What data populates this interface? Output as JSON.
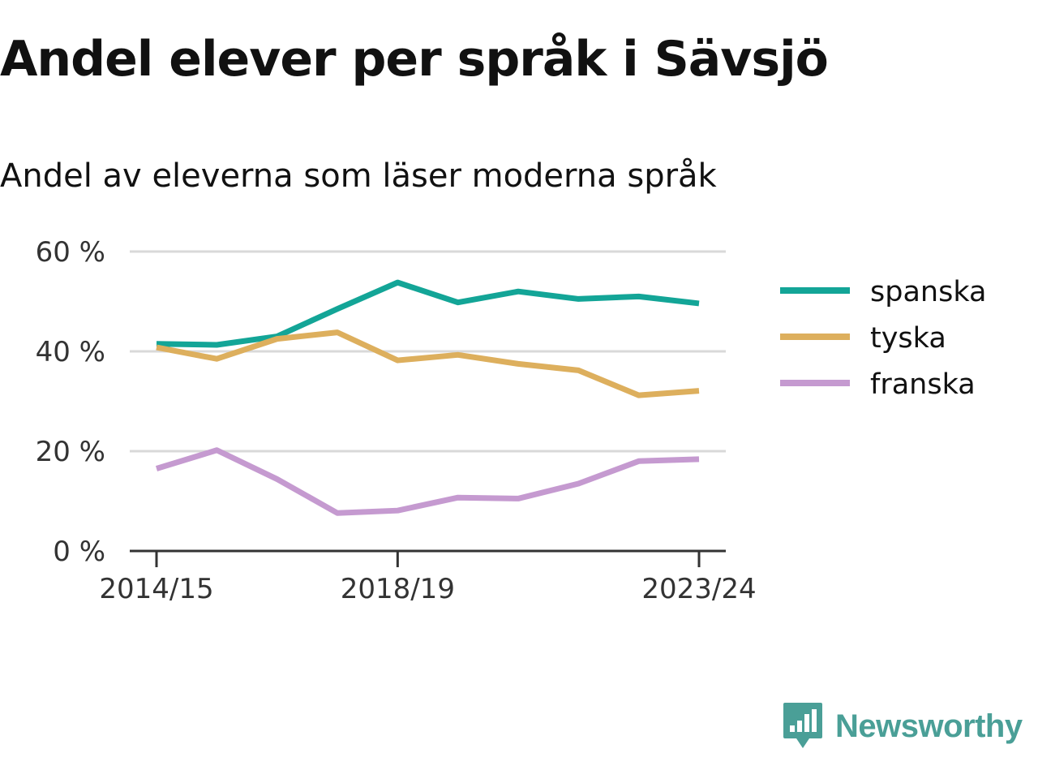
{
  "title": "Andel elever per språk i Sävsjö",
  "subtitle": "Andel av eleverna som läser moderna språk",
  "brand": {
    "name": "Newsworthy",
    "icon": "newsworthy-logo-icon",
    "color": "#4a9f97"
  },
  "chart_data": {
    "type": "line",
    "x": [
      "2014/15",
      "2015/16",
      "2016/17",
      "2017/18",
      "2018/19",
      "2019/20",
      "2020/21",
      "2021/22",
      "2022/23",
      "2023/24"
    ],
    "x_tick_labels": [
      "2014/15",
      "2018/19",
      "2023/24"
    ],
    "y_ticks": [
      0,
      20,
      40,
      60
    ],
    "y_tick_labels": [
      "0 %",
      "20 %",
      "40 %",
      "60 %"
    ],
    "ylim": [
      0,
      60
    ],
    "grid": true,
    "legend_position": "right",
    "series": [
      {
        "name": "spanska",
        "color": "#13a597",
        "values": [
          41.5,
          41.3,
          43.0,
          48.5,
          53.8,
          49.8,
          52.0,
          50.5,
          51.0,
          49.6
        ]
      },
      {
        "name": "tyska",
        "color": "#ddaf5d",
        "values": [
          40.8,
          38.5,
          42.5,
          43.8,
          38.2,
          39.3,
          37.5,
          36.2,
          31.2,
          32.1
        ]
      },
      {
        "name": "franska",
        "color": "#c59ad0",
        "values": [
          16.5,
          20.2,
          14.4,
          7.6,
          8.1,
          10.7,
          10.5,
          13.5,
          18.0,
          18.4
        ]
      }
    ]
  }
}
